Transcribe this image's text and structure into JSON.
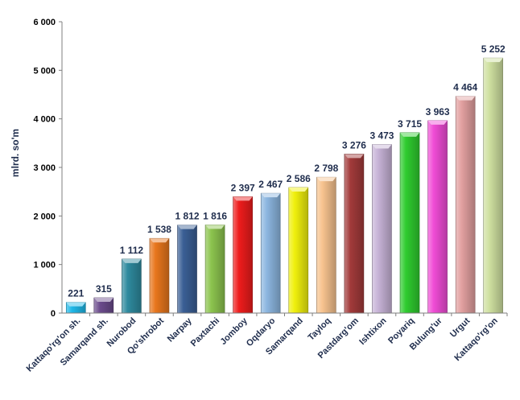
{
  "chart_data": {
    "type": "bar",
    "title": "",
    "xlabel": "",
    "ylabel": "mlrd. so'm",
    "ylim": [
      0,
      6000
    ],
    "yticks": [
      0,
      1000,
      2000,
      3000,
      4000,
      5000,
      6000
    ],
    "ytick_labels": [
      "0",
      "1 000",
      "2 000",
      "3 000",
      "4 000",
      "5 000",
      "6 000"
    ],
    "grid": false,
    "legend": "none",
    "categories": [
      "Kattaqo'rg'on sh.",
      "Samarqand sh.",
      "Nurobod",
      "Qo'shrobot",
      "Narpay",
      "Paxtachi",
      "Jomboy",
      "Oqdaryo",
      "Samarqand",
      "Tayloq",
      "Pastdarg'om",
      "Ishtixon",
      "Poyariq",
      "Bulung'ur",
      "Urgut",
      "Kattaqo'rg'on"
    ],
    "values": [
      221,
      315,
      1112,
      1538,
      1812,
      1816,
      2397,
      2467,
      2586,
      2798,
      3276,
      3473,
      3715,
      3963,
      4464,
      5252
    ],
    "value_labels": [
      "221",
      "315",
      "1 112",
      "1 538",
      "1 812",
      "1 816",
      "2 397",
      "2 467",
      "2 586",
      "2 798",
      "3 276",
      "3 473",
      "3 715",
      "3 963",
      "4 464",
      "5 252"
    ],
    "colors": [
      "#1fb8e8",
      "#6b4b8c",
      "#2e8a9e",
      "#e8761c",
      "#3a5f95",
      "#8cc44e",
      "#ee1c1c",
      "#8cb6e0",
      "#f0f00c",
      "#f7c38f",
      "#a23a3a",
      "#c7b3d7",
      "#2fcc2f",
      "#f04cd6",
      "#e2a0a0",
      "#cfe0a0"
    ]
  }
}
